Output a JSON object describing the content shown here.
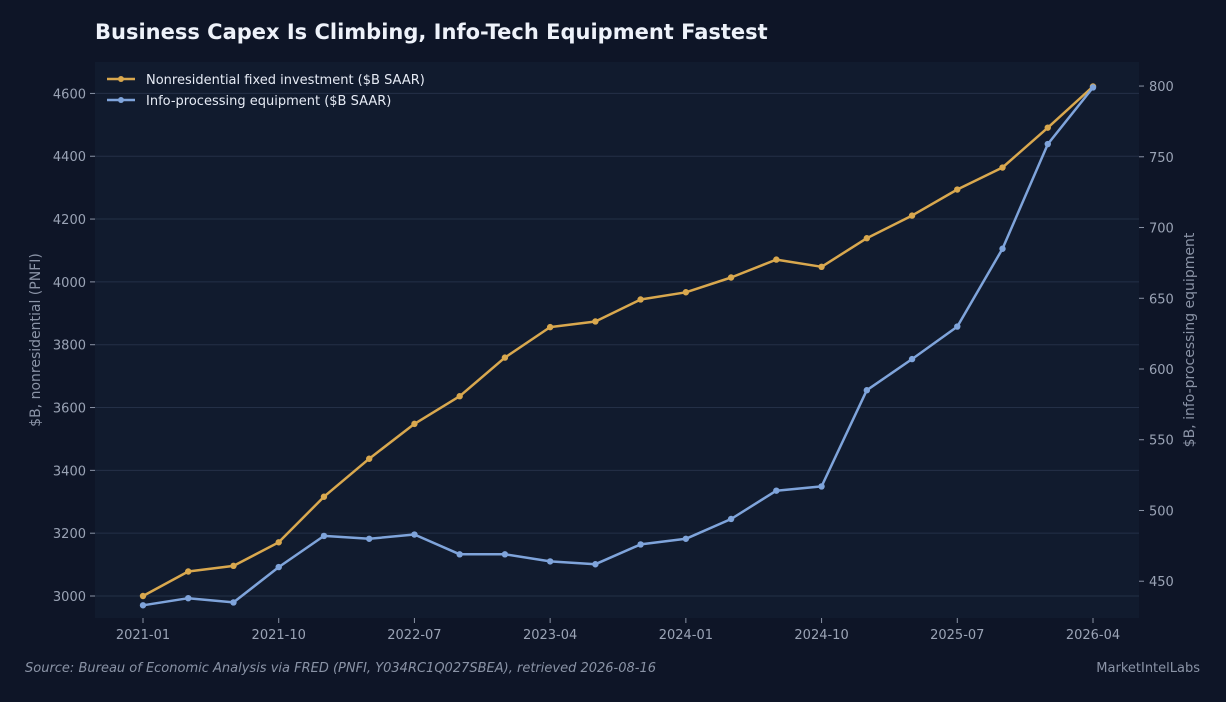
{
  "header": {
    "title": "Business Capex Is Climbing, Info-Tech Equipment Fastest"
  },
  "footer": {
    "source": "Source: Bureau of Economic Analysis via FRED (PNFI, Y034RC1Q027SBEA), retrieved 2026-08-16",
    "brand": "MarketIntelLabs"
  },
  "colors": {
    "background": "#0e1527",
    "plot_background": "#111b2e",
    "grid": "#243047",
    "series_1": "#d9a84e",
    "series_2": "#7fa4db"
  },
  "chart_data": {
    "type": "line",
    "title": "Business Capex Is Climbing, Info-Tech Equipment Fastest",
    "x": [
      "2021-01",
      "2021-04",
      "2021-07",
      "2021-10",
      "2022-01",
      "2022-04",
      "2022-07",
      "2022-10",
      "2023-01",
      "2023-04",
      "2023-07",
      "2023-10",
      "2024-01",
      "2024-04",
      "2024-07",
      "2024-10",
      "2025-01",
      "2025-04",
      "2025-07",
      "2025-10",
      "2026-01",
      "2026-04"
    ],
    "x_ticks": [
      "2021-01",
      "2021-10",
      "2022-07",
      "2023-04",
      "2024-01",
      "2024-10",
      "2025-07",
      "2026-04"
    ],
    "grid": true,
    "legend_position": "top-left",
    "y_left": {
      "label": "$B, nonresidential (PNFI)",
      "ticks": [
        3000,
        3200,
        3400,
        3600,
        3800,
        4000,
        4200,
        4400,
        4600
      ],
      "range": [
        2930,
        4700
      ]
    },
    "y_right": {
      "label": "$B, info-processing equipment",
      "ticks": [
        450,
        500,
        550,
        600,
        650,
        700,
        750,
        800
      ],
      "range": [
        424,
        817
      ]
    },
    "series": [
      {
        "name": "Nonresidential fixed investment ($B SAAR)",
        "axis": "left",
        "color": "#d9a84e",
        "values": [
          3000,
          3078,
          3096,
          3171,
          3316,
          3437,
          3548,
          3636,
          3759,
          3856,
          3874,
          3944,
          3967,
          4014,
          4071,
          4048,
          4139,
          4211,
          4294,
          4364,
          4491,
          4622
        ]
      },
      {
        "name": "Info-processing equipment ($B SAAR)",
        "axis": "right",
        "color": "#7fa4db",
        "values": [
          433,
          438,
          435,
          460,
          482,
          480,
          483,
          469,
          469,
          464,
          462,
          476,
          480,
          494,
          514,
          517,
          585,
          607,
          630,
          685,
          759,
          799
        ]
      }
    ]
  }
}
